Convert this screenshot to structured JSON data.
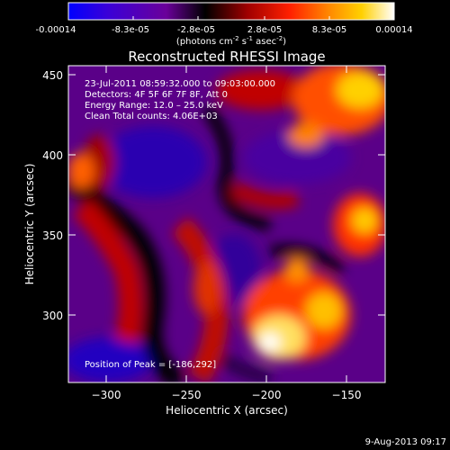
{
  "colorbar": {
    "tick_labels": [
      "-0.00014",
      "-8.3e-05",
      "-2.8e-05",
      "2.8e-05",
      "8.3e-05",
      "0.00014"
    ],
    "unit_main": "(photons cm",
    "unit_exp1": "-2",
    "unit_mid": " s",
    "unit_exp2": "-1",
    "unit_tail": " asec",
    "unit_exp3": "-2",
    "unit_close": ")",
    "colormap": [
      "#0000ff",
      "#3a00d8",
      "#6a009a",
      "#000000",
      "#a00000",
      "#ff2000",
      "#ff8800",
      "#ffd000",
      "#ffffff"
    ]
  },
  "plot": {
    "title": "Reconstructed RHESSI Image",
    "xlabel": "Heliocentric X (arcsec)",
    "ylabel": "Heliocentric Y (arcsec)",
    "x_ticks": [
      "−300",
      "−250",
      "−200",
      "−150"
    ],
    "y_ticks": [
      "300",
      "350",
      "400",
      "450"
    ],
    "info_lines": [
      "23-Jul-2011 08:59:32.000 to 09:03:00.000",
      "Detectors: 4F 5F 6F 7F 8F, Att 0",
      "Energy Range: 12.0 – 25.0 keV",
      "Clean    Total counts: 4.06E+03"
    ],
    "peak_label": "Position of Peak = [-186,292]"
  },
  "footer": {
    "timestamp": "9-Aug-2013 09:17"
  }
}
